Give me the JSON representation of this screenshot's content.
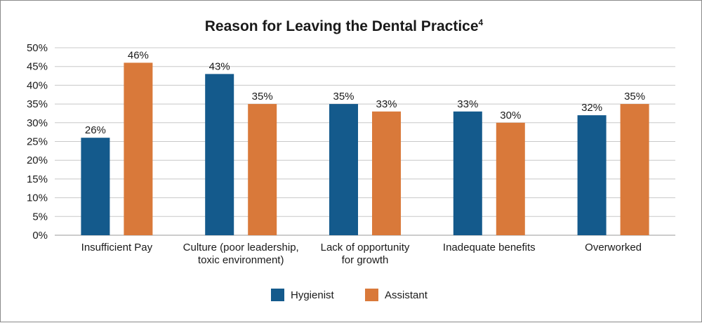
{
  "chart_data": {
    "type": "bar",
    "title": "Reason for Leaving the Dental Practice",
    "title_superscript": "4",
    "xlabel": "",
    "ylabel": "",
    "ylim": [
      0,
      50
    ],
    "ytick_step": 5,
    "ytick_suffix": "%",
    "grid": true,
    "legend_position": "bottom-center",
    "categories": [
      [
        "Insufficient Pay"
      ],
      [
        "Culture (poor leadership,",
        "toxic environment)"
      ],
      [
        "Lack of opportunity",
        "for growth"
      ],
      [
        "Inadequate benefits"
      ],
      [
        "Overworked"
      ]
    ],
    "series": [
      {
        "name": "Hygienist",
        "color": "#145a8c",
        "values": [
          26,
          43,
          35,
          33,
          32
        ]
      },
      {
        "name": "Assistant",
        "color": "#d9793a",
        "values": [
          46,
          35,
          33,
          30,
          35
        ]
      }
    ]
  }
}
